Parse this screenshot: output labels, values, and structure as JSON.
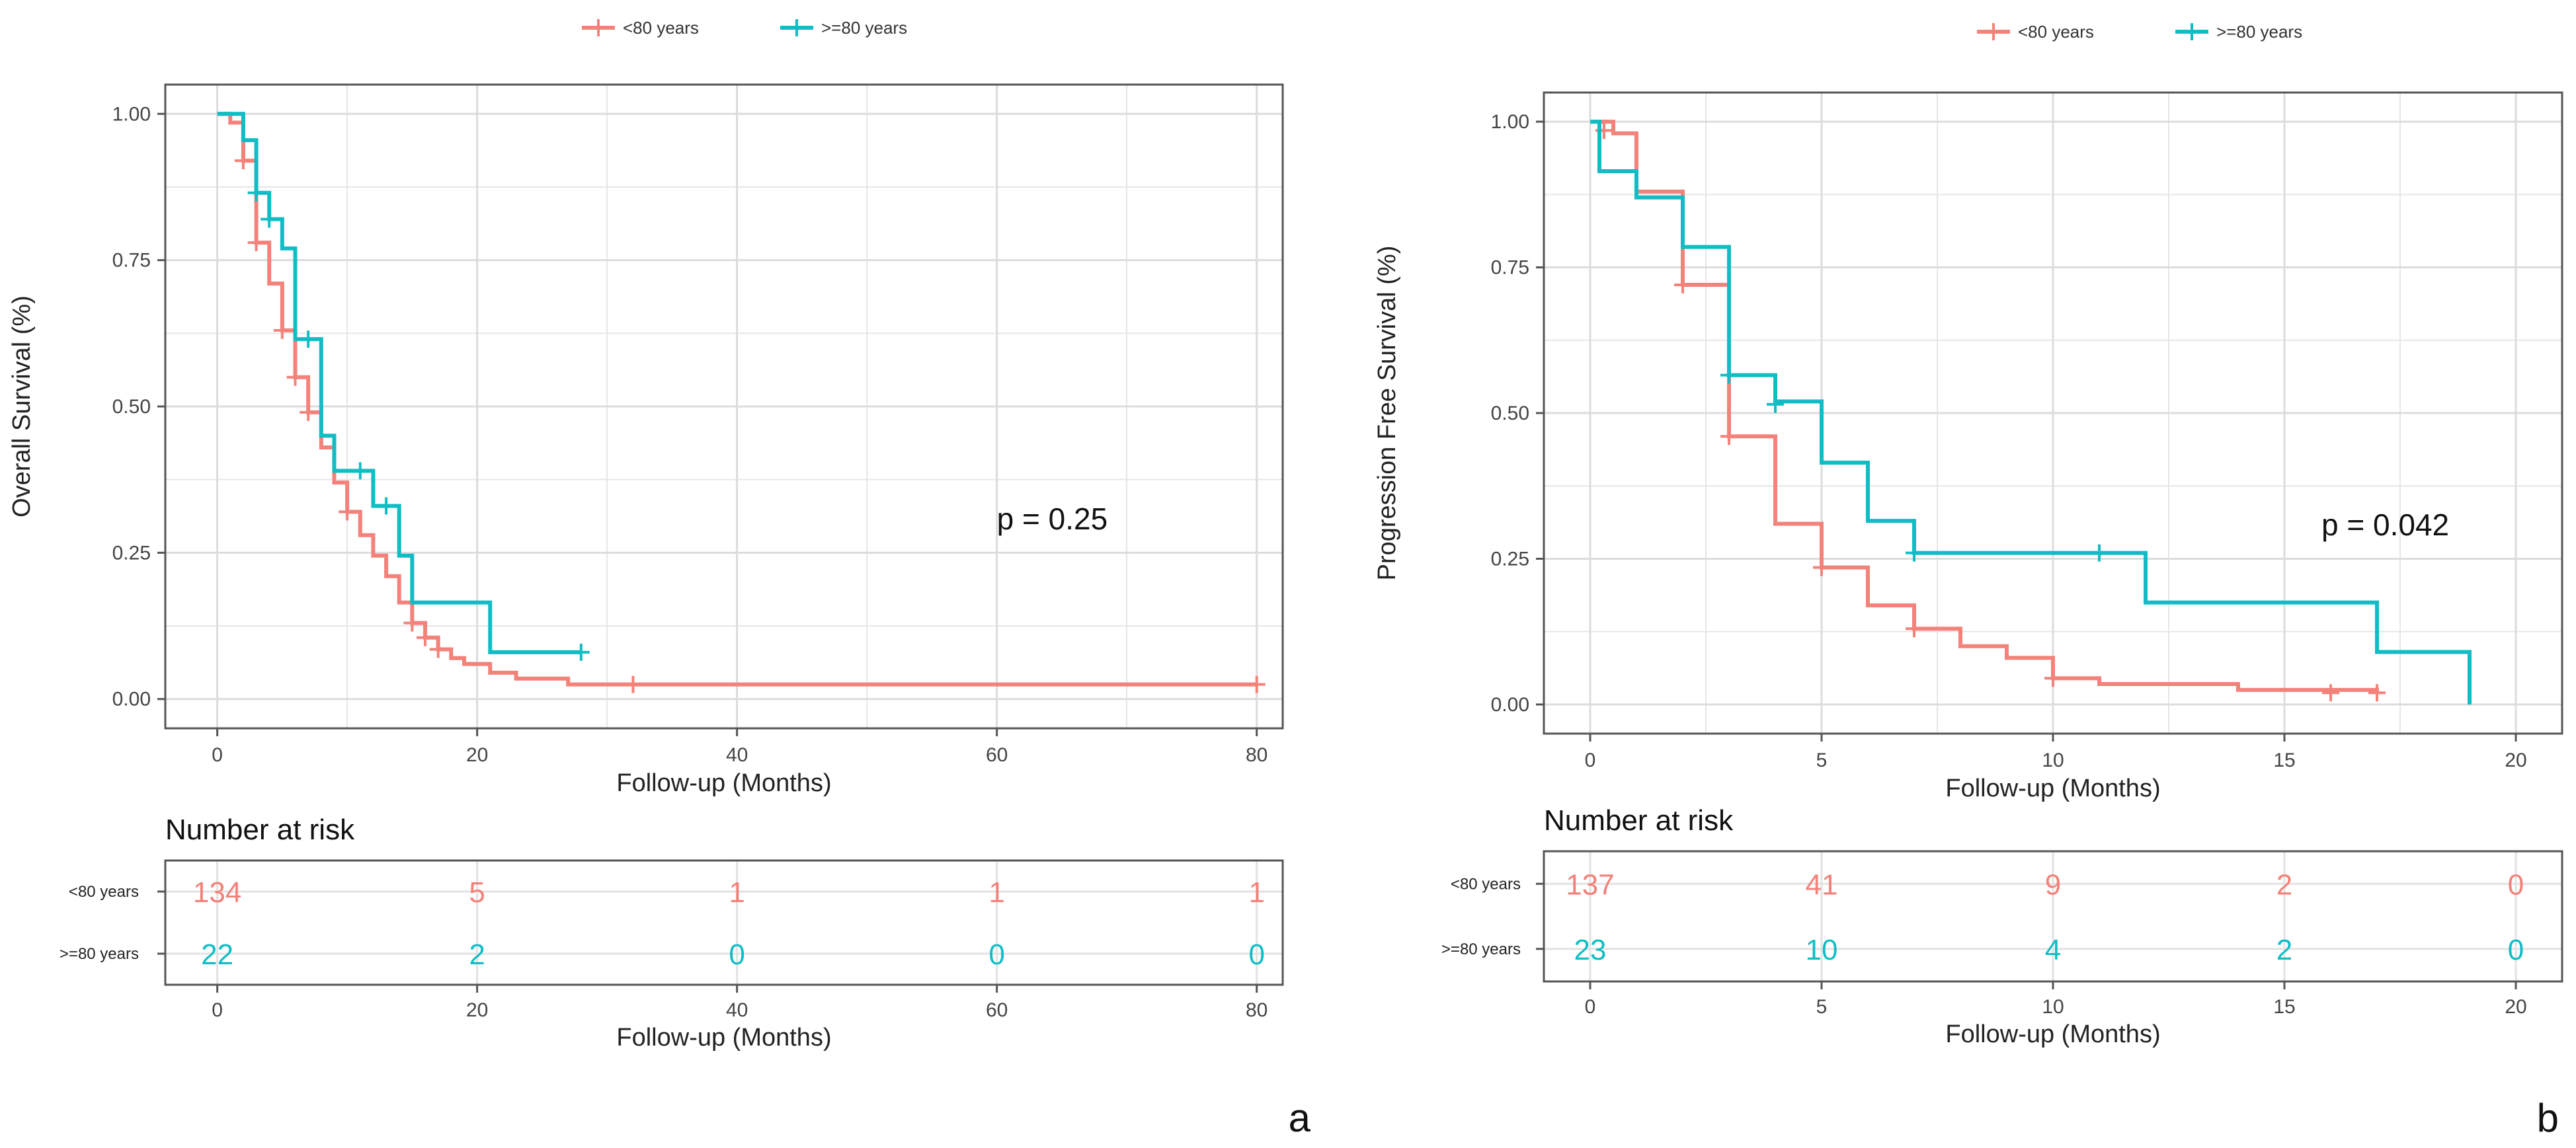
{
  "colors": {
    "lt80": "#F2827A",
    "ge80": "#11BDC5",
    "grid": "#E6E6E6",
    "axis": "#555555",
    "tick": "#444444"
  },
  "chart_data": [
    {
      "type": "line",
      "panel_label": "a",
      "ylabel": "Overall Survival (%)",
      "xlabel": "Follow-up (Months)",
      "xlim": [
        -4,
        82
      ],
      "ylim": [
        -0.05,
        1.05
      ],
      "xticks": [
        0,
        20,
        40,
        60,
        80
      ],
      "xtick_labels": [
        "0",
        "20",
        "40",
        "60",
        "80"
      ],
      "yticks": [
        0,
        0.25,
        0.5,
        0.75,
        1
      ],
      "ytick_labels": [
        "0.00",
        "0.25",
        "0.50",
        "0.75",
        "1.00"
      ],
      "legend": {
        "placement": "top-center",
        "entries": [
          "<80 years",
          ">=80 years"
        ]
      },
      "annotation": "p = 0.25",
      "annotation_at": [
        60,
        0.29
      ],
      "series": [
        {
          "name": "<80 years",
          "color_key": "lt80",
          "steps": [
            [
              0,
              1
            ],
            [
              1,
              0.985
            ],
            [
              2,
              0.92
            ],
            [
              3,
              0.78
            ],
            [
              4,
              0.71
            ],
            [
              5,
              0.63
            ],
            [
              6,
              0.55
            ],
            [
              7,
              0.49
            ],
            [
              8,
              0.43
            ],
            [
              9,
              0.37
            ],
            [
              10,
              0.32
            ],
            [
              11,
              0.28
            ],
            [
              12,
              0.245
            ],
            [
              13,
              0.21
            ],
            [
              14,
              0.165
            ],
            [
              15,
              0.13
            ],
            [
              16,
              0.105
            ],
            [
              17,
              0.085
            ],
            [
              18,
              0.07
            ],
            [
              19,
              0.06
            ],
            [
              21,
              0.045
            ],
            [
              23,
              0.035
            ],
            [
              27,
              0.025
            ],
            [
              80,
              0.025
            ]
          ],
          "censor": [
            [
              2,
              0.92
            ],
            [
              3,
              0.78
            ],
            [
              5,
              0.63
            ],
            [
              6,
              0.55
            ],
            [
              7,
              0.49
            ],
            [
              10,
              0.32
            ],
            [
              15,
              0.13
            ],
            [
              16,
              0.105
            ],
            [
              17,
              0.085
            ],
            [
              32,
              0.025
            ],
            [
              80,
              0.025
            ]
          ]
        },
        {
          "name": ">=80 years",
          "color_key": "ge80",
          "steps": [
            [
              0,
              1
            ],
            [
              2,
              0.955
            ],
            [
              3,
              0.865
            ],
            [
              4,
              0.82
            ],
            [
              5,
              0.77
            ],
            [
              6,
              0.615
            ],
            [
              8,
              0.45
            ],
            [
              9,
              0.39
            ],
            [
              12,
              0.33
            ],
            [
              14,
              0.245
            ],
            [
              15,
              0.165
            ],
            [
              21,
              0.08
            ],
            [
              28,
              0.08
            ]
          ],
          "censor": [
            [
              3,
              0.865
            ],
            [
              4,
              0.82
            ],
            [
              7,
              0.615
            ],
            [
              11,
              0.39
            ],
            [
              13,
              0.33
            ],
            [
              28,
              0.08
            ]
          ]
        }
      ],
      "risk_table": {
        "title": "Number at risk",
        "xlabel": "Follow-up (Months)",
        "times": [
          0,
          20,
          40,
          60,
          80
        ],
        "rows": [
          {
            "label": "<80 years",
            "color_key": "lt80",
            "values": [
              "134",
              "5",
              "1",
              "1",
              "1"
            ]
          },
          {
            "label": ">=80 years",
            "color_key": "ge80",
            "values": [
              "22",
              "2",
              "0",
              "0",
              "0"
            ]
          }
        ]
      }
    },
    {
      "type": "line",
      "panel_label": "b",
      "ylabel": "Progression Free Survival (%)",
      "xlabel": "Follow-up (Months)",
      "xlim": [
        -1,
        21
      ],
      "ylim": [
        -0.05,
        1.05
      ],
      "xticks": [
        0,
        5,
        10,
        15,
        20
      ],
      "xtick_labels": [
        "0",
        "5",
        "10",
        "15",
        "20"
      ],
      "yticks": [
        0,
        0.25,
        0.5,
        0.75,
        1
      ],
      "ytick_labels": [
        "0.00",
        "0.25",
        "0.50",
        "0.75",
        "1.00"
      ],
      "legend": {
        "placement": "top-center",
        "entries": [
          "<80 years",
          ">=80 years"
        ]
      },
      "annotation": "p = 0.042",
      "annotation_at": [
        15.8,
        0.29
      ],
      "series": [
        {
          "name": "<80 years",
          "color_key": "lt80",
          "steps": [
            [
              0,
              1
            ],
            [
              0.5,
              0.98
            ],
            [
              1,
              0.88
            ],
            [
              2,
              0.72
            ],
            [
              3,
              0.46
            ],
            [
              4,
              0.31
            ],
            [
              5,
              0.235
            ],
            [
              6,
              0.17
            ],
            [
              7,
              0.13
            ],
            [
              8,
              0.1
            ],
            [
              9,
              0.08
            ],
            [
              10,
              0.045
            ],
            [
              11,
              0.035
            ],
            [
              14,
              0.025
            ],
            [
              17,
              0.02
            ]
          ],
          "censor": [
            [
              0.3,
              0.985
            ],
            [
              2,
              0.72
            ],
            [
              3,
              0.46
            ],
            [
              5,
              0.235
            ],
            [
              7,
              0.13
            ],
            [
              10,
              0.045
            ],
            [
              16,
              0.02
            ],
            [
              17,
              0.02
            ]
          ]
        },
        {
          "name": ">=80 years",
          "color_key": "ge80",
          "steps": [
            [
              0,
              1
            ],
            [
              0.2,
              0.915
            ],
            [
              1,
              0.87
            ],
            [
              2,
              0.785
            ],
            [
              3,
              0.565
            ],
            [
              4,
              0.52
            ],
            [
              5,
              0.415
            ],
            [
              6,
              0.315
            ],
            [
              7,
              0.26
            ],
            [
              12,
              0.175
            ],
            [
              17,
              0.09
            ],
            [
              19,
              0
            ]
          ],
          "censor": [
            [
              3,
              0.565
            ],
            [
              4,
              0.515
            ],
            [
              7,
              0.26
            ],
            [
              11,
              0.26
            ]
          ]
        }
      ],
      "risk_table": {
        "title": "Number at risk",
        "xlabel": "Follow-up (Months)",
        "times": [
          0,
          5,
          10,
          15,
          20
        ],
        "rows": [
          {
            "label": "<80 years",
            "color_key": "lt80",
            "values": [
              "137",
              "41",
              "9",
              "2",
              "0"
            ]
          },
          {
            "label": ">=80 years",
            "color_key": "ge80",
            "values": [
              "23",
              "10",
              "4",
              "2",
              "0"
            ]
          }
        ]
      }
    }
  ]
}
